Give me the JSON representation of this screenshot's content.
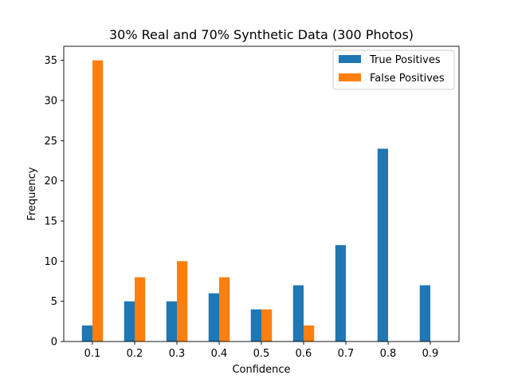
{
  "chart_data": {
    "type": "bar",
    "title": "30% Real and 70% Synthetic Data (300 Photos)",
    "xlabel": "Confidence",
    "ylabel": "Frequency",
    "categories": [
      "0.1",
      "0.2",
      "0.3",
      "0.4",
      "0.5",
      "0.6",
      "0.7",
      "0.8",
      "0.9"
    ],
    "series": [
      {
        "name": "True Positives",
        "color": "#1f77b4",
        "values": [
          2,
          5,
          5,
          6,
          4,
          7,
          12,
          24,
          7
        ]
      },
      {
        "name": "False Positives",
        "color": "#ff7f0e",
        "values": [
          35,
          8,
          10,
          8,
          4,
          2,
          0,
          0,
          0
        ]
      }
    ],
    "ylim": [
      0,
      36.75
    ],
    "yticks": [
      "0",
      "5",
      "10",
      "15",
      "20",
      "25",
      "30",
      "35"
    ],
    "legend_position": "top-right",
    "grid": false
  }
}
